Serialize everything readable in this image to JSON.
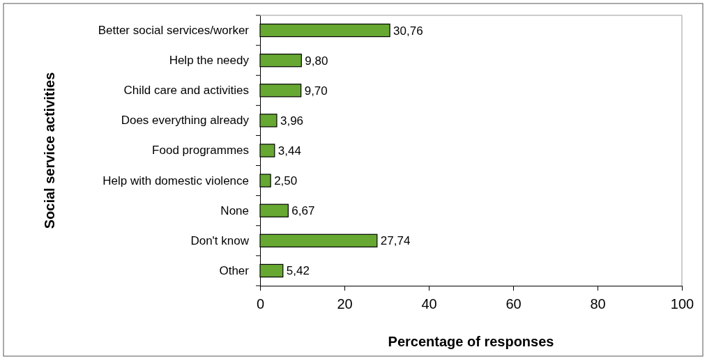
{
  "chart_data": {
    "type": "bar",
    "orientation": "horizontal",
    "xlabel": "Percentage of responses",
    "ylabel": "Social service activities",
    "categories": [
      "Better social services/worker",
      "Help the needy",
      "Child care and activities",
      "Does everything already",
      "Food programmes",
      "Help with domestic violence",
      "None",
      "Don't know",
      "Other"
    ],
    "values": [
      30.76,
      9.8,
      9.7,
      3.96,
      3.44,
      2.5,
      6.67,
      27.74,
      5.42
    ],
    "value_labels": [
      "30,76",
      "9,80",
      "9,70",
      "3,96",
      "3,44",
      "2,50",
      "6,67",
      "27,74",
      "5,42"
    ],
    "color": "#66a832",
    "xlim": [
      0,
      100
    ],
    "xticks": [
      0,
      20,
      40,
      60,
      80,
      100
    ],
    "grid": false
  }
}
